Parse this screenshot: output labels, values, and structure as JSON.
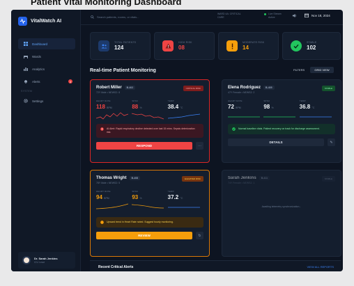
{
  "page_heading": "Patient Vital Monitoring Dashboard",
  "brand": {
    "name": "VitalWatch AI"
  },
  "sidebar": {
    "items": [
      {
        "label": "Dashboard",
        "icon": "grid-icon",
        "active": true
      },
      {
        "label": "Wards",
        "icon": "bed-icon"
      },
      {
        "label": "Analytics",
        "icon": "bar-chart-icon"
      },
      {
        "label": "Alerts",
        "icon": "bell-icon",
        "badge": "3"
      }
    ],
    "section_label": "SYSTEM",
    "settings_label": "Settings",
    "user": {
      "name": "Dr. Sarah Jenkins",
      "role": "ICU Lead"
    }
  },
  "topbar": {
    "search_placeholder": "Search patients, rooms, or vitals...",
    "ward_line1": "WARD 4A: CRITICAL",
    "ward_line2": "CARE",
    "live_line1": "Live Stream",
    "live_line2": "Active",
    "date": "Nov 18, 2024"
  },
  "stats": [
    {
      "label": "TOTAL PATIENTS",
      "value": "124",
      "color": "#3b82f6",
      "icon": "users-icon"
    },
    {
      "label": "HIGH RISK",
      "value": "08",
      "color": "#ef4444",
      "icon": "warning-icon"
    },
    {
      "label": "MODERATE RISK",
      "value": "14",
      "color": "#f59e0b",
      "icon": "exclamation-icon"
    },
    {
      "label": "STABLE",
      "value": "102",
      "color": "#22c55e",
      "icon": "check-icon"
    }
  ],
  "monitoring": {
    "title": "Real-time Patient Monitoring",
    "filters": "FILTERS",
    "grid_view": "GRID VIEW"
  },
  "vital_labels": {
    "hr": "HEART RATE",
    "spo2": "SPO2",
    "temp": "TEMP"
  },
  "units": {
    "hr": "BPM",
    "spo2": "%",
    "temp": "°C"
  },
  "patients": [
    {
      "name": "Robert Miller",
      "bed": "B-402",
      "meta": "72Y Male • NEWS2: 8",
      "status": "CRITICAL RISK",
      "hr": "118",
      "spo2": "88",
      "temp": "38.4",
      "alert": "AI Alert: Rapid respiratory decline detected over last 15 mins. Sepsis deterioration risk.",
      "action": "RESPOND"
    },
    {
      "name": "Elena Rodriguez",
      "bed": "B-405",
      "meta": "47Y Female • NEWS2: 2",
      "status": "STABLE",
      "hr": "72",
      "spo2": "98",
      "temp": "36.8",
      "alert": "Normal baseline vitals. Patient recovery on track for discharge assessment.",
      "action": "DETAILS"
    },
    {
      "name": "Thomas Wright",
      "bed": "B-408",
      "meta": "78Y Male • NEWS2: 5",
      "status": "ELEVATED RISK",
      "hr": "94",
      "spo2": "93",
      "temp": "37.2",
      "alert": "Upward trend in Heart Rate noted. Suggest hourly monitoring.",
      "action": "REVIEW"
    },
    {
      "name": "Sarah Jenkins",
      "bed": "B-411",
      "meta": "74Y Female • NEWS2: 1",
      "status": "STABLE",
      "empty_message": "Awaiting telemetry synchronization..."
    }
  ],
  "recent": {
    "title": "Recent Critical Alerts",
    "view_all": "VIEW ALL REPORTS"
  }
}
